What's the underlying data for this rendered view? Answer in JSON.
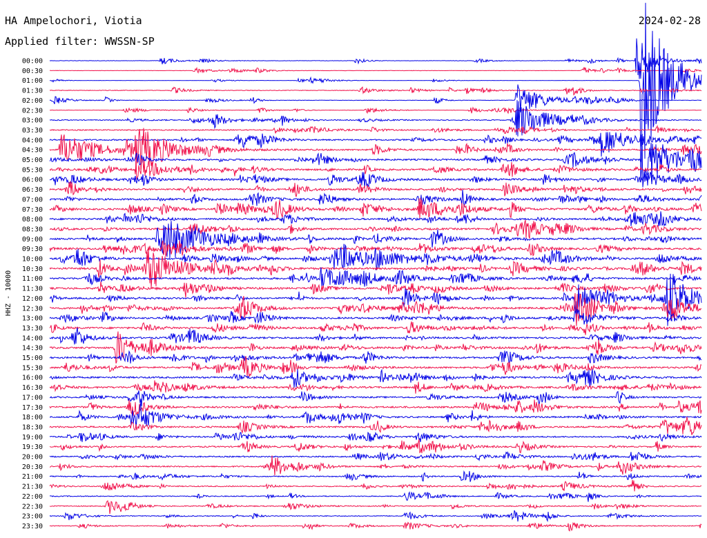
{
  "header": {
    "station": "HA Ampelochori, Viotia",
    "date": "2024-02-28",
    "filter": "Applied filter: WWSSN-SP"
  },
  "chart_data": {
    "type": "line",
    "ylabel": "HHZ - 10000",
    "colors": [
      "#0000e6",
      "#f0104a"
    ],
    "row_labels": [
      "00:00",
      "00:30",
      "01:00",
      "01:30",
      "02:00",
      "02:30",
      "03:00",
      "03:30",
      "04:00",
      "04:30",
      "05:00",
      "05:30",
      "06:00",
      "06:30",
      "07:00",
      "07:30",
      "08:00",
      "08:30",
      "09:00",
      "09:30",
      "10:00",
      "10:30",
      "11:00",
      "11:30",
      "12:00",
      "12:30",
      "13:00",
      "13:30",
      "14:00",
      "14:30",
      "15:00",
      "15:30",
      "16:00",
      "16:30",
      "17:00",
      "17:30",
      "18:00",
      "18:30",
      "19:00",
      "19:30",
      "20:00",
      "20:30",
      "21:00",
      "21:30",
      "22:00",
      "22:30",
      "23:00",
      "23:30"
    ],
    "noise_level": [
      0.15,
      0.15,
      0.1,
      0.25,
      0.2,
      0.15,
      0.4,
      0.45,
      0.6,
      0.65,
      0.7,
      0.75,
      0.8,
      0.75,
      0.75,
      0.8,
      0.75,
      0.8,
      0.8,
      0.85,
      0.8,
      0.85,
      0.8,
      0.8,
      0.75,
      0.8,
      0.75,
      0.8,
      0.75,
      0.8,
      0.75,
      0.75,
      0.75,
      0.8,
      0.7,
      0.75,
      0.7,
      0.7,
      0.6,
      0.6,
      0.55,
      0.55,
      0.45,
      0.45,
      0.4,
      0.4,
      0.35,
      0.35
    ],
    "events": [
      {
        "row": 0,
        "minute": 27.0,
        "amp": 40,
        "dur": 0.7
      },
      {
        "row": 2,
        "minute": 27.2,
        "amp": 160,
        "dur": 1.0
      },
      {
        "row": 2,
        "minute": 29.0,
        "amp": 12,
        "dur": 0.5
      },
      {
        "row": 4,
        "minute": 21.5,
        "amp": 25,
        "dur": 1.2
      },
      {
        "row": 6,
        "minute": 21.5,
        "amp": 28,
        "dur": 1.5
      },
      {
        "row": 8,
        "minute": 25.4,
        "amp": 22,
        "dur": 1.2
      },
      {
        "row": 9,
        "minute": 0.5,
        "amp": 25,
        "dur": 1.5
      },
      {
        "row": 9,
        "minute": 4.0,
        "amp": 35,
        "dur": 1.5
      },
      {
        "row": 10,
        "minute": 27.3,
        "amp": 40,
        "dur": 1.5
      },
      {
        "row": 11,
        "minute": 4.0,
        "amp": 18,
        "dur": 1.2
      },
      {
        "row": 15,
        "minute": 17.0,
        "amp": 16,
        "dur": 1.5
      },
      {
        "row": 18,
        "minute": 5.0,
        "amp": 22,
        "dur": 2.0
      },
      {
        "row": 18,
        "minute": 5.3,
        "amp": 14,
        "dur": 1.5
      },
      {
        "row": 19,
        "minute": 5.2,
        "amp": 10,
        "dur": 1.2
      },
      {
        "row": 20,
        "minute": 13.0,
        "amp": 16,
        "dur": 2.0
      },
      {
        "row": 20,
        "minute": 15.0,
        "amp": 10,
        "dur": 1.5
      },
      {
        "row": 21,
        "minute": 4.5,
        "amp": 30,
        "dur": 1.5
      },
      {
        "row": 22,
        "minute": 12.5,
        "amp": 16,
        "dur": 1.5
      },
      {
        "row": 24,
        "minute": 24.2,
        "amp": 32,
        "dur": 1.0
      },
      {
        "row": 24,
        "minute": 28.4,
        "amp": 45,
        "dur": 1.0
      },
      {
        "row": 24,
        "minute": 30.8,
        "amp": 40,
        "dur": 1.0
      },
      {
        "row": 25,
        "minute": 24.2,
        "amp": 25,
        "dur": 1.0
      },
      {
        "row": 25,
        "minute": 28.5,
        "amp": 18,
        "dur": 1.0
      },
      {
        "row": 25,
        "minute": 30.9,
        "amp": 22,
        "dur": 1.0
      },
      {
        "row": 26,
        "minute": 24.2,
        "amp": 12,
        "dur": 1.0
      },
      {
        "row": 29,
        "minute": 3.0,
        "amp": 30,
        "dur": 0.6
      },
      {
        "row": 36,
        "minute": 3.8,
        "amp": 16,
        "dur": 1.2
      },
      {
        "row": 37,
        "minute": 29.3,
        "amp": 12,
        "dur": 1.2
      },
      {
        "row": 41,
        "minute": 10.2,
        "amp": 13,
        "dur": 1.0
      },
      {
        "row": 44,
        "minute": 30.9,
        "amp": 8,
        "dur": 1.0
      }
    ]
  }
}
